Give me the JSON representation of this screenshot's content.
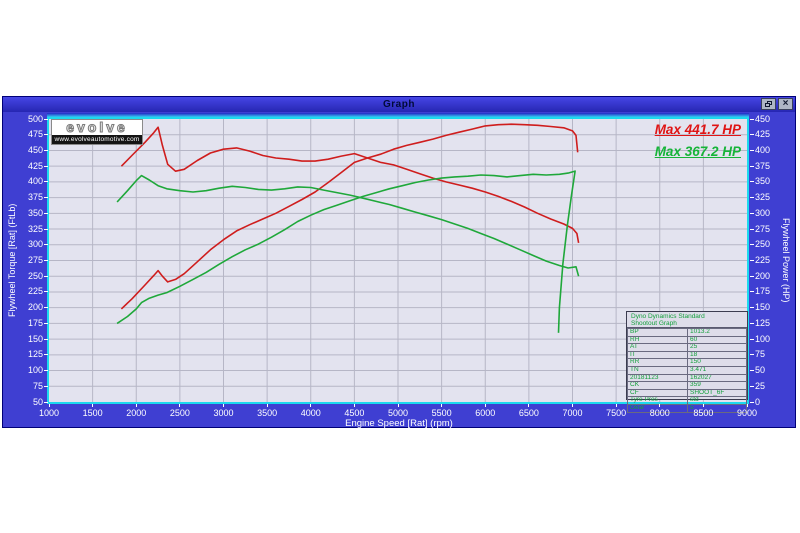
{
  "window": {
    "title": "Graph",
    "close_glyph": "×"
  },
  "logo": {
    "brand": "evolve",
    "url": "www.evolveautomotive.com"
  },
  "annotations": {
    "max_red": {
      "text": "Max 441.7 HP",
      "color": "#e01414"
    },
    "max_green": {
      "text": "Max 367.2 HP",
      "color": "#16b438"
    }
  },
  "axes": {
    "x_label": "Engine Speed [Rat] (rpm)",
    "left_label": "Flywheel Torque [Rat] (FtLb)",
    "right_label": "Flywheel Power (HP)",
    "x_ticks": [
      1000,
      1500,
      2000,
      2500,
      3000,
      3500,
      4000,
      4500,
      5000,
      5500,
      6000,
      6500,
      7000,
      7500,
      8000,
      8500,
      9000
    ],
    "left_ticks": [
      500,
      475,
      450,
      425,
      400,
      375,
      350,
      325,
      300,
      275,
      250,
      225,
      200,
      175,
      150,
      125,
      100,
      75,
      50
    ],
    "right_ticks": [
      450,
      425,
      400,
      375,
      350,
      325,
      300,
      275,
      250,
      225,
      200,
      175,
      150,
      125,
      100,
      75,
      50,
      25,
      0
    ]
  },
  "colors": {
    "window_bg": "#3f3fd2",
    "plot_bg": "#e3e3ef",
    "plot_border": "#1cd9ee",
    "grid": "#b6b6c6",
    "red_series": "#cf1d1d",
    "green_series": "#1fa83a",
    "table_text": "#14a03c"
  },
  "chart_data": {
    "type": "line",
    "title": "Graph",
    "xlabel": "Engine Speed [Rat] (rpm)",
    "ylabel_left": "Flywheel Torque [Rat] (FtLb)",
    "ylabel_right": "Flywheel Power (HP)",
    "xlim": [
      1000,
      9000
    ],
    "ylim_left": [
      50,
      500
    ],
    "ylim_right": [
      0,
      450
    ],
    "x_tick_step": 500,
    "y_tick_step": 25,
    "grid": true,
    "legend": "none",
    "max_power_red_hp": 441.7,
    "max_power_green_hp": 367.2,
    "series": [
      {
        "name": "flywheel-torque-red",
        "axis": "left",
        "color": "#cf1d1d",
        "points": [
          [
            1830,
            425
          ],
          [
            1950,
            442
          ],
          [
            2100,
            463
          ],
          [
            2200,
            478
          ],
          [
            2250,
            487
          ],
          [
            2300,
            458
          ],
          [
            2360,
            428
          ],
          [
            2450,
            417
          ],
          [
            2550,
            420
          ],
          [
            2700,
            434
          ],
          [
            2850,
            446
          ],
          [
            3000,
            452
          ],
          [
            3150,
            454
          ],
          [
            3300,
            449
          ],
          [
            3450,
            442
          ],
          [
            3600,
            438
          ],
          [
            3750,
            436
          ],
          [
            3900,
            433
          ],
          [
            4050,
            433
          ],
          [
            4200,
            436
          ],
          [
            4350,
            441
          ],
          [
            4500,
            445
          ],
          [
            4650,
            438
          ],
          [
            4800,
            431
          ],
          [
            4950,
            427
          ],
          [
            5100,
            420
          ],
          [
            5250,
            413
          ],
          [
            5400,
            406
          ],
          [
            5550,
            400
          ],
          [
            5700,
            395
          ],
          [
            5850,
            390
          ],
          [
            6000,
            384
          ],
          [
            6150,
            377
          ],
          [
            6300,
            369
          ],
          [
            6450,
            360
          ],
          [
            6600,
            350
          ],
          [
            6750,
            341
          ],
          [
            6900,
            333
          ],
          [
            7000,
            326
          ],
          [
            7050,
            318
          ],
          [
            7070,
            303
          ]
        ]
      },
      {
        "name": "flywheel-power-red",
        "axis": "right",
        "color": "#cf1d1d",
        "points": [
          [
            1830,
            148
          ],
          [
            1950,
            164
          ],
          [
            2100,
            186
          ],
          [
            2200,
            201
          ],
          [
            2250,
            209
          ],
          [
            2300,
            200
          ],
          [
            2360,
            191
          ],
          [
            2450,
            195
          ],
          [
            2550,
            204
          ],
          [
            2700,
            223
          ],
          [
            2850,
            242
          ],
          [
            3000,
            258
          ],
          [
            3150,
            272
          ],
          [
            3300,
            282
          ],
          [
            3450,
            291
          ],
          [
            3600,
            300
          ],
          [
            3750,
            311
          ],
          [
            3900,
            322
          ],
          [
            4050,
            334
          ],
          [
            4200,
            349
          ],
          [
            4350,
            365
          ],
          [
            4500,
            381
          ],
          [
            4650,
            388
          ],
          [
            4800,
            394
          ],
          [
            4950,
            402
          ],
          [
            5100,
            408
          ],
          [
            5250,
            413
          ],
          [
            5400,
            418
          ],
          [
            5550,
            424
          ],
          [
            5700,
            429
          ],
          [
            5850,
            434
          ],
          [
            6000,
            439
          ],
          [
            6150,
            441
          ],
          [
            6300,
            441.7
          ],
          [
            6450,
            441
          ],
          [
            6600,
            440
          ],
          [
            6750,
            438
          ],
          [
            6900,
            436
          ],
          [
            7000,
            431
          ],
          [
            7040,
            424
          ],
          [
            7060,
            397
          ]
        ]
      },
      {
        "name": "flywheel-torque-green",
        "axis": "left",
        "color": "#1fa83a",
        "points": [
          [
            1780,
            368
          ],
          [
            1900,
            386
          ],
          [
            2000,
            402
          ],
          [
            2060,
            410
          ],
          [
            2150,
            403
          ],
          [
            2250,
            394
          ],
          [
            2350,
            389
          ],
          [
            2500,
            386
          ],
          [
            2650,
            384
          ],
          [
            2800,
            386
          ],
          [
            2950,
            390
          ],
          [
            3100,
            393
          ],
          [
            3250,
            391
          ],
          [
            3400,
            388
          ],
          [
            3550,
            387
          ],
          [
            3700,
            389
          ],
          [
            3850,
            392
          ],
          [
            4000,
            391
          ],
          [
            4150,
            387
          ],
          [
            4300,
            383
          ],
          [
            4450,
            379
          ],
          [
            4600,
            374
          ],
          [
            4750,
            369
          ],
          [
            4900,
            364
          ],
          [
            5050,
            358
          ],
          [
            5200,
            352
          ],
          [
            5350,
            346
          ],
          [
            5500,
            340
          ],
          [
            5650,
            333
          ],
          [
            5800,
            326
          ],
          [
            5950,
            318
          ],
          [
            6100,
            310
          ],
          [
            6250,
            301
          ],
          [
            6400,
            292
          ],
          [
            6550,
            283
          ],
          [
            6700,
            274
          ],
          [
            6850,
            267
          ],
          [
            6950,
            263
          ],
          [
            7040,
            265
          ],
          [
            7070,
            250
          ]
        ]
      },
      {
        "name": "flywheel-power-green",
        "axis": "right",
        "color": "#1fa83a",
        "points": [
          [
            1780,
            125
          ],
          [
            1900,
            136
          ],
          [
            2000,
            148
          ],
          [
            2060,
            158
          ],
          [
            2150,
            165
          ],
          [
            2250,
            170
          ],
          [
            2350,
            174
          ],
          [
            2500,
            184
          ],
          [
            2650,
            195
          ],
          [
            2800,
            206
          ],
          [
            2950,
            219
          ],
          [
            3100,
            231
          ],
          [
            3250,
            242
          ],
          [
            3400,
            251
          ],
          [
            3550,
            262
          ],
          [
            3700,
            274
          ],
          [
            3850,
            287
          ],
          [
            4000,
            297
          ],
          [
            4150,
            306
          ],
          [
            4300,
            313
          ],
          [
            4450,
            320
          ],
          [
            4600,
            327
          ],
          [
            4750,
            333
          ],
          [
            4900,
            339
          ],
          [
            5050,
            344
          ],
          [
            5200,
            349
          ],
          [
            5350,
            353
          ],
          [
            5500,
            356
          ],
          [
            5650,
            358
          ],
          [
            5800,
            359
          ],
          [
            5950,
            361
          ],
          [
            6100,
            360
          ],
          [
            6250,
            358
          ],
          [
            6400,
            360
          ],
          [
            6550,
            362
          ],
          [
            6700,
            361
          ],
          [
            6850,
            362
          ],
          [
            6950,
            364
          ],
          [
            7030,
            367.2
          ],
          [
            6990,
            330
          ],
          [
            6940,
            280
          ],
          [
            6890,
            220
          ],
          [
            6850,
            150
          ],
          [
            6840,
            110
          ]
        ]
      }
    ]
  },
  "info_table": {
    "header_line1": "Dyno Dynamics Standard",
    "header_line2": "Shootout Graph",
    "rows": [
      {
        "label": "BP",
        "value": "1013.2"
      },
      {
        "label": "RH",
        "value": "60"
      },
      {
        "label": "AT",
        "value": "25"
      },
      {
        "label": "IT",
        "value": "18"
      },
      {
        "label": "RR",
        "value": "150"
      },
      {
        "label": "TN",
        "value": "3.471"
      },
      {
        "label": "20181123",
        "value": "162027"
      },
      {
        "label": "CK",
        "value": "359"
      },
      {
        "label": "CF",
        "value": "SHOOT_6F"
      },
      {
        "label": "Tyre Pres",
        "value": "std"
      },
      {
        "label": "Gear",
        "value": "5"
      }
    ]
  }
}
